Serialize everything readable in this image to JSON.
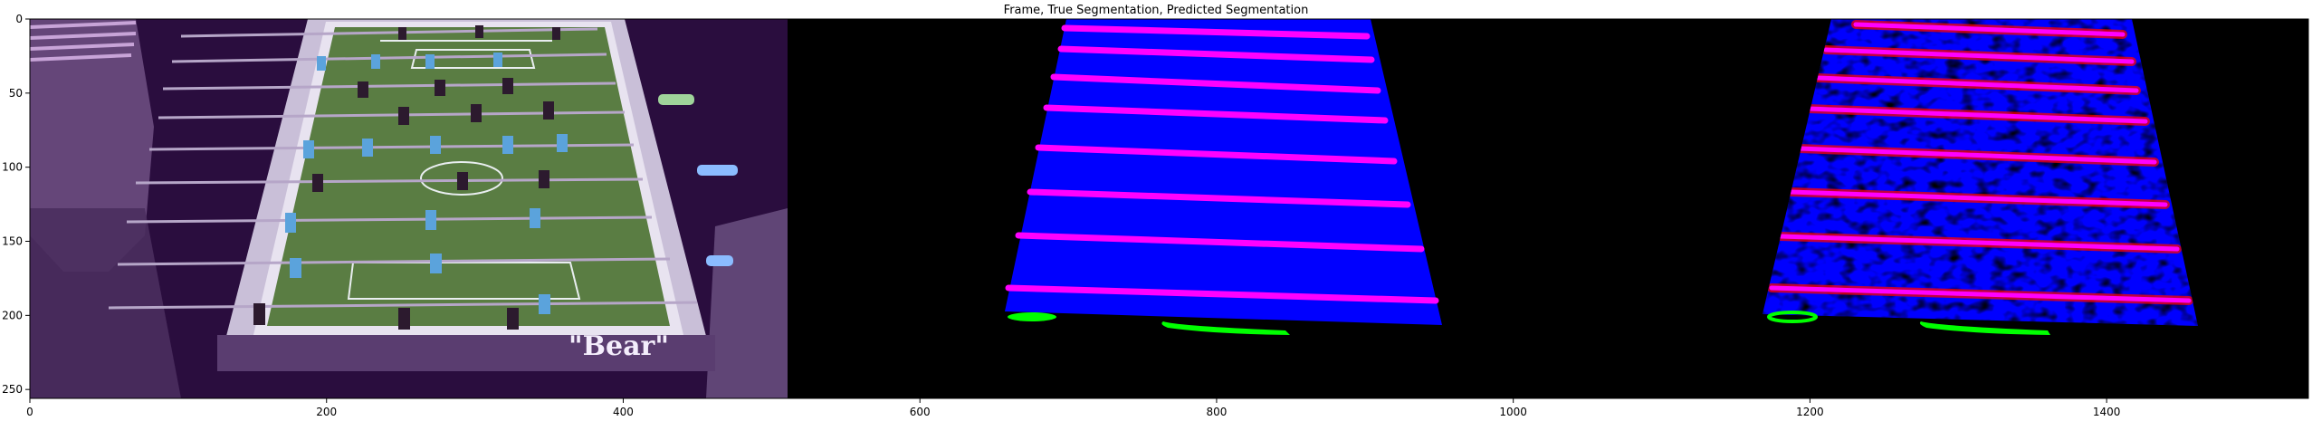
{
  "figure": {
    "title": "Frame, True Segmentation, Predicted Segmentation",
    "x_ticks": [
      "0",
      "200",
      "400",
      "600",
      "800",
      "1000",
      "1200",
      "1400"
    ],
    "y_ticks": [
      "0",
      "50",
      "100",
      "150",
      "200",
      "250"
    ],
    "x_range": [
      0,
      1536
    ],
    "y_range": [
      256,
      0
    ]
  },
  "frame_panel": {
    "sign_text": "\"Bear\"",
    "colors": {
      "background": "#2a0d3e",
      "table_border": "#d8cce6",
      "field": "#5a7d43",
      "player_dark": "#2c1a2e",
      "player_light": "#5ba3dc"
    }
  },
  "true_segmentation_panel": {
    "colors": {
      "background": "#000000",
      "field": "#0000ff",
      "rods": "#ff00ff",
      "goals": "#00ff00"
    }
  },
  "predicted_segmentation_panel": {
    "colors": {
      "background": "#000000",
      "field": "#0000ff",
      "rods": "#ff00ff",
      "rod_noise": "#ff0000",
      "goals": "#00ff00"
    }
  }
}
